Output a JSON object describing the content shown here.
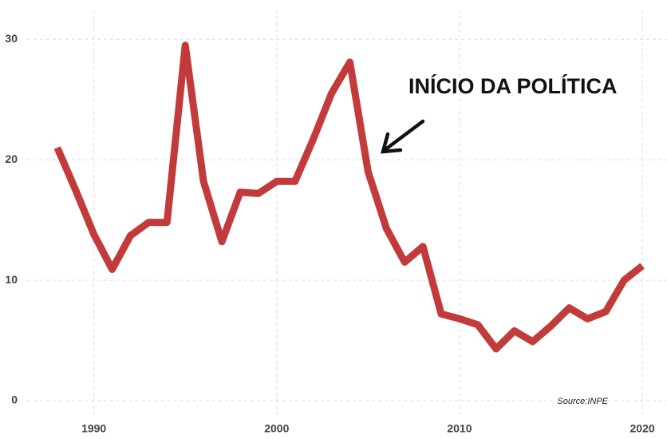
{
  "chart_data": {
    "type": "line",
    "x": [
      1988,
      1989,
      1990,
      1991,
      1992,
      1993,
      1994,
      1995,
      1996,
      1997,
      1998,
      1999,
      2000,
      2001,
      2002,
      2003,
      2004,
      2005,
      2006,
      2007,
      2008,
      2009,
      2010,
      2011,
      2012,
      2013,
      2014,
      2015,
      2016,
      2017,
      2018,
      2019,
      2020
    ],
    "series": [
      {
        "color": "#c23b3a",
        "values": [
          21,
          17.5,
          13.8,
          10.9,
          13.7,
          14.8,
          14.8,
          29.5,
          18.2,
          13.2,
          17.3,
          17.2,
          18.2,
          18.2,
          21.7,
          25.5,
          28.1,
          19.0,
          14.3,
          11.5,
          12.8,
          7.2,
          6.8,
          6.3,
          4.3,
          5.8,
          4.9,
          6.2,
          7.7,
          6.8,
          7.4,
          10.0,
          11.2
        ]
      }
    ],
    "xlim": [
      1986,
      2021
    ],
    "xticks": [
      1990,
      2000,
      2010,
      2020
    ],
    "ylim": [
      0,
      32
    ],
    "yticks": [
      0,
      10,
      20,
      30
    ],
    "grid": true,
    "annotation": "INÍCIO DA POLÍTICA",
    "source": "Source:INPE"
  }
}
